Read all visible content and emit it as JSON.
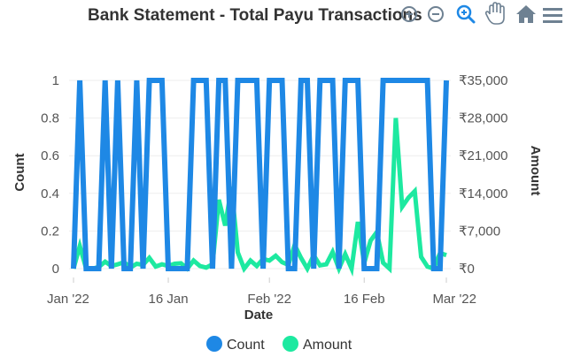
{
  "title": "Bank Statement - Total Payu Transactions",
  "toolbar": {
    "icons": [
      "zoom-in-icon",
      "zoom-out-icon",
      "selection-zoom-icon",
      "pan-hand-icon",
      "reset-home-icon",
      "menu-icon"
    ],
    "active_color": "#1e88e5",
    "inactive_color": "#6e8192"
  },
  "chart_data": {
    "type": "line",
    "title": "Bank Statement - Total Payu Transactions",
    "xlabel": "Date",
    "x_ticks": [
      {
        "label": "Jan '22",
        "day": 0
      },
      {
        "label": "16 Jan",
        "day": 15
      },
      {
        "label": "Feb '22",
        "day": 31
      },
      {
        "label": "16 Feb",
        "day": 46
      },
      {
        "label": "Mar '22",
        "day": 59
      }
    ],
    "x_range_days": [
      0,
      59
    ],
    "y_left": {
      "label": "Count",
      "range": [
        0,
        1
      ],
      "ticks": [
        "0",
        "0.2",
        "0.4",
        "0.6",
        "0.8",
        "1"
      ]
    },
    "y_right": {
      "label": "Amount",
      "range": [
        0,
        35000
      ],
      "ticks": [
        "₹0",
        "₹7,000",
        "₹14,000",
        "₹21,000",
        "₹28,000",
        "₹35,000"
      ]
    },
    "grid": true,
    "legend_position": "bottom",
    "series": [
      {
        "name": "Count",
        "axis": "left",
        "color": "#1e88e5",
        "values": [
          0,
          1,
          0,
          0,
          0,
          1,
          0,
          1,
          0,
          0,
          1,
          0,
          1,
          1,
          1,
          0,
          0,
          0,
          0,
          1,
          1,
          1,
          0,
          1,
          1,
          0,
          1,
          1,
          1,
          1,
          0,
          1,
          1,
          1,
          0,
          0,
          1,
          1,
          0,
          1,
          1,
          1,
          0,
          1,
          1,
          1,
          0,
          0,
          0,
          1,
          1,
          1,
          1,
          1,
          1,
          1,
          1,
          0,
          0,
          1
        ]
      },
      {
        "name": "Amount",
        "axis": "right",
        "color": "#1de9a0",
        "values": [
          0,
          4200,
          0,
          0,
          300,
          1300,
          500,
          800,
          1200,
          200,
          900,
          700,
          2000,
          400,
          800,
          500,
          900,
          1000,
          0,
          1500,
          500,
          200,
          800,
          12800,
          8000,
          15200,
          3000,
          0,
          1500,
          500,
          1800,
          1500,
          2400,
          1200,
          700,
          4400,
          2000,
          0,
          2500,
          600,
          800,
          3100,
          0,
          2700,
          0,
          8700,
          1000,
          5200,
          6800,
          1100,
          0,
          28000,
          11500,
          13200,
          14400,
          2200,
          400,
          0,
          2900,
          2500
        ]
      }
    ]
  }
}
